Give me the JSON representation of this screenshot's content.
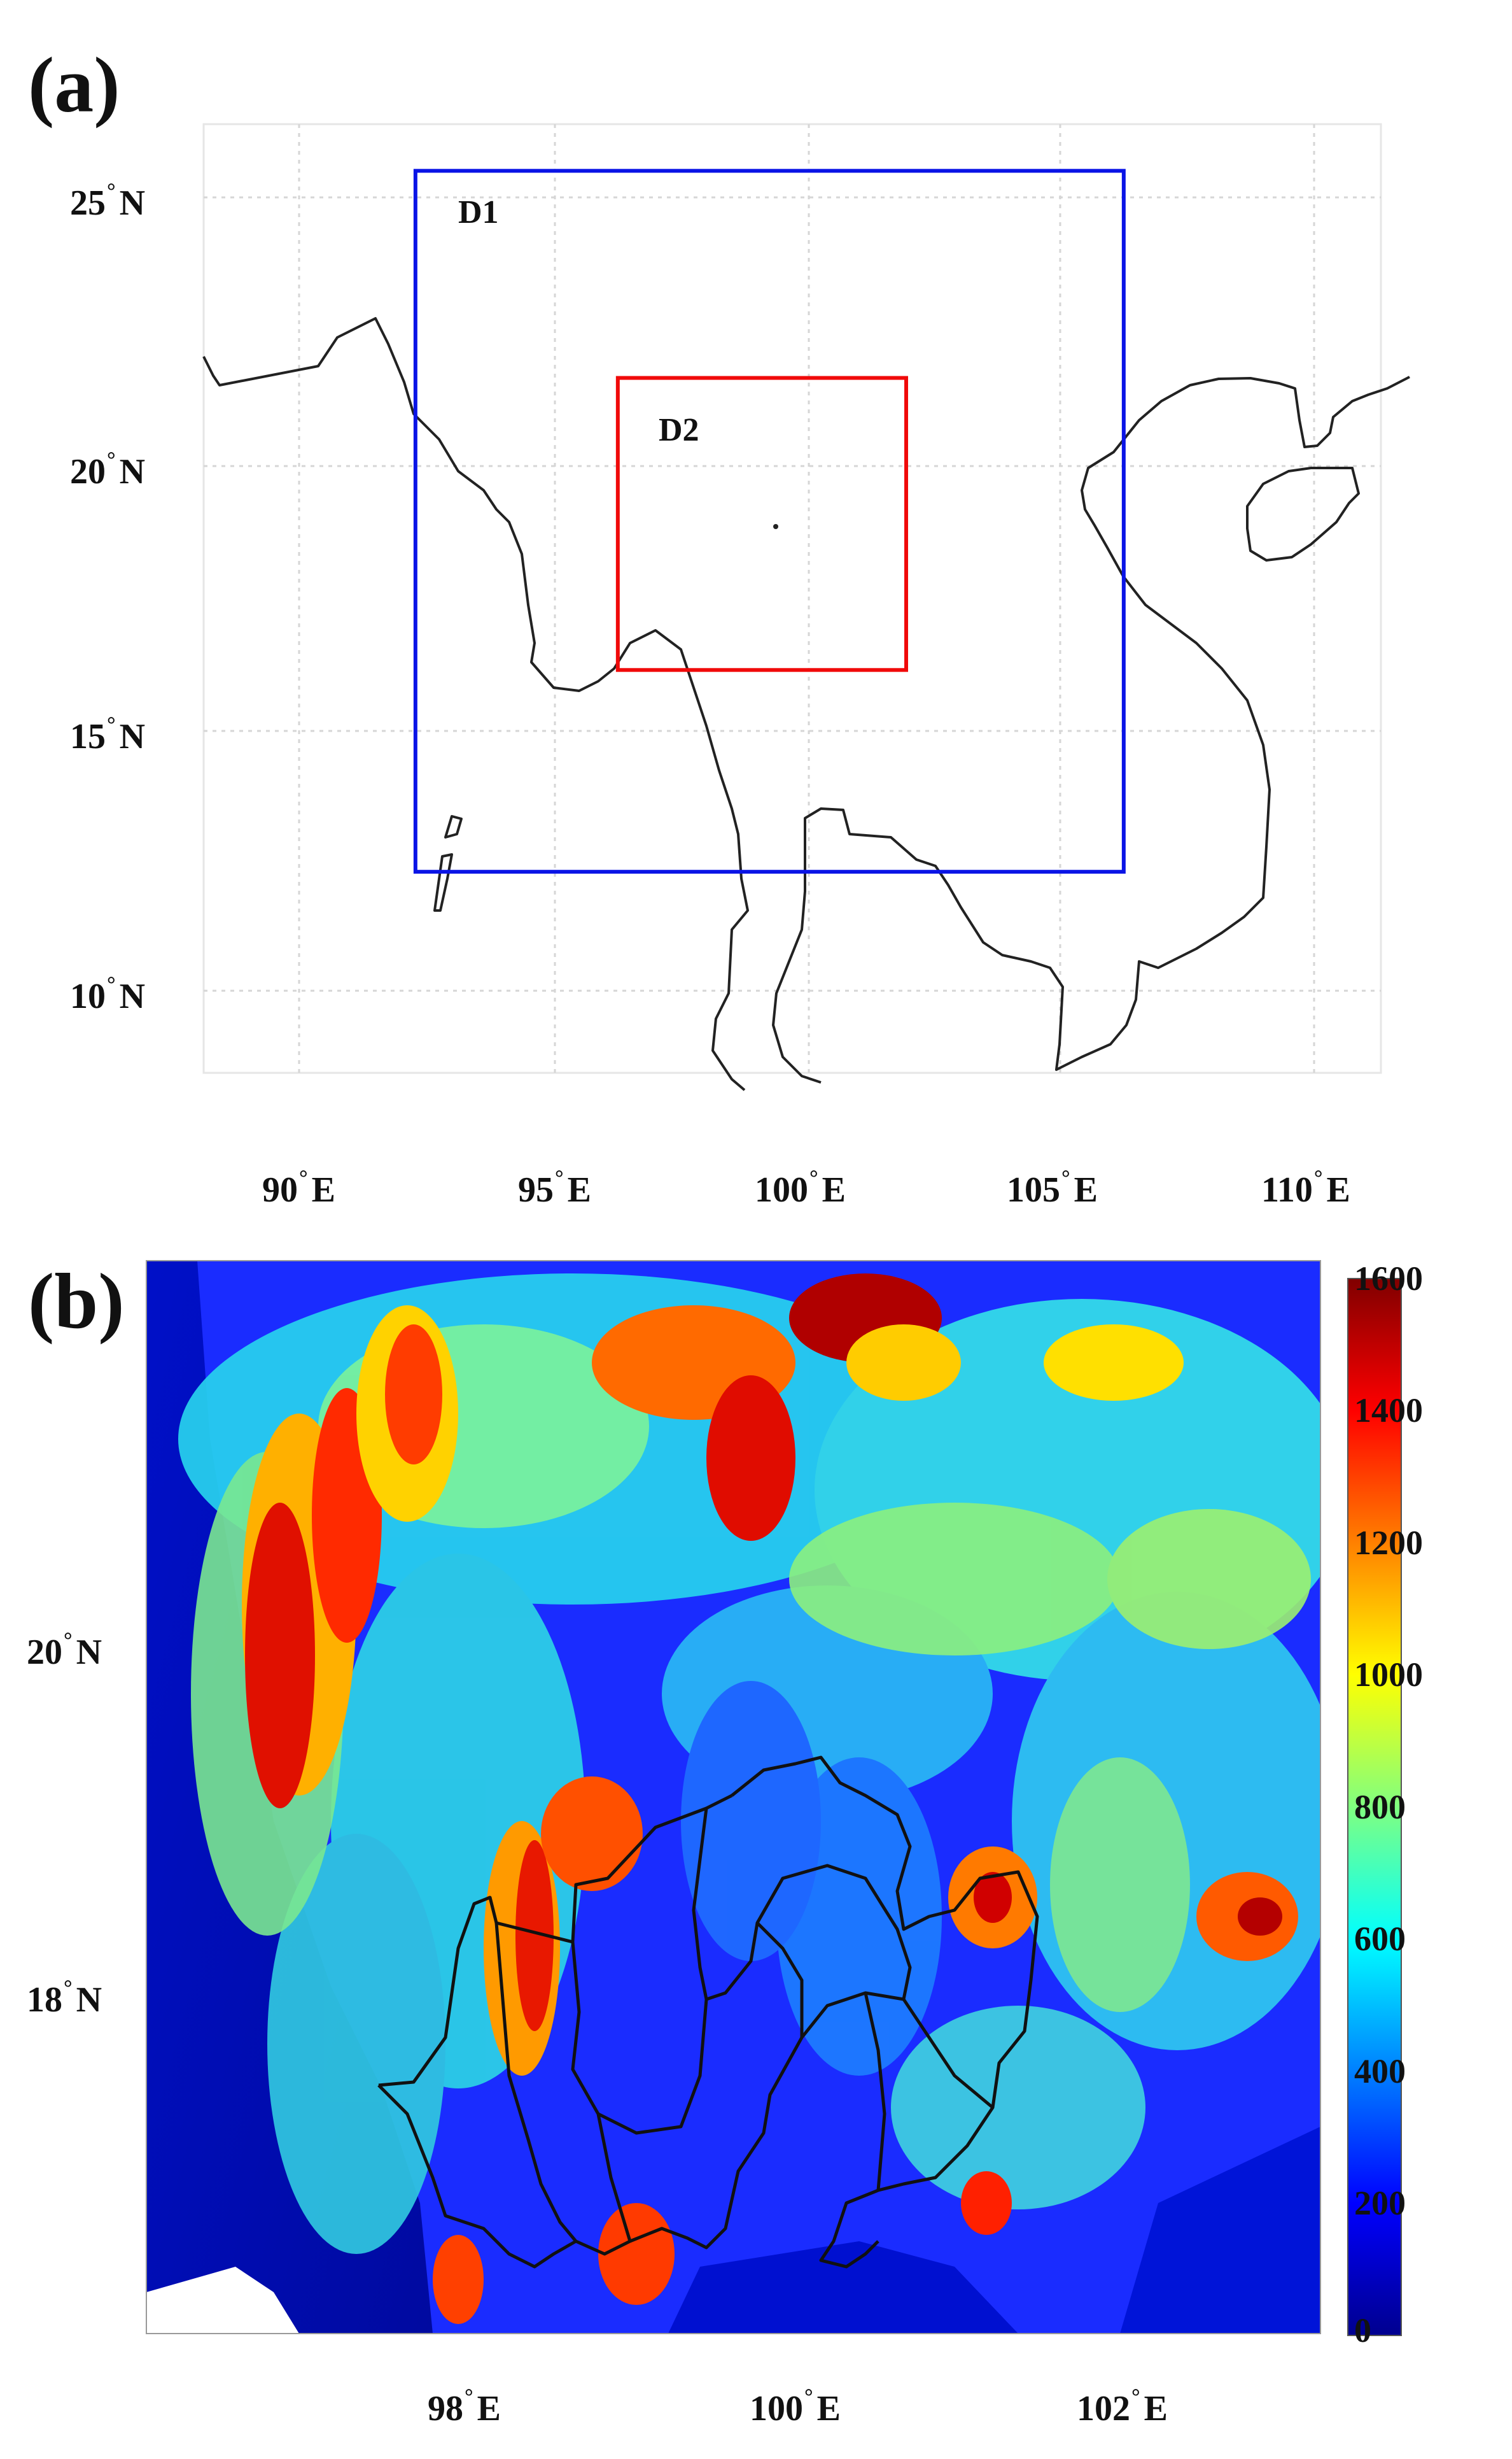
{
  "panel_a": {
    "letter": "(a)",
    "lat_ticks": [
      {
        "deg": "25",
        "hemi": "N"
      },
      {
        "deg": "20",
        "hemi": "N"
      },
      {
        "deg": "15",
        "hemi": "N"
      },
      {
        "deg": "10",
        "hemi": "N"
      }
    ],
    "lon_ticks": [
      {
        "deg": "90",
        "hemi": "E"
      },
      {
        "deg": "95",
        "hemi": "E"
      },
      {
        "deg": "100",
        "hemi": "E"
      },
      {
        "deg": "105",
        "hemi": "E"
      },
      {
        "deg": "110",
        "hemi": "E"
      }
    ],
    "domains": [
      {
        "label": "D1",
        "color": "#0a14e6",
        "lon_range": [
          92.3,
          106.3
        ],
        "lat_range": [
          12.3,
          25.5
        ]
      },
      {
        "label": "D2",
        "color": "#f00a0a",
        "lon_range": [
          96.3,
          102.0
        ],
        "lat_range": [
          16.1,
          21.6
        ]
      }
    ]
  },
  "panel_b": {
    "letter": "(b)",
    "lat_ticks": [
      {
        "deg": "20",
        "hemi": "N"
      },
      {
        "deg": "18",
        "hemi": "N"
      }
    ],
    "lon_ticks": [
      {
        "deg": "98",
        "hemi": "E"
      },
      {
        "deg": "100",
        "hemi": "E"
      },
      {
        "deg": "102",
        "hemi": "E"
      }
    ],
    "colorbar": {
      "ticks": [
        "1600",
        "1400",
        "1200",
        "1000",
        "800",
        "600",
        "400",
        "200",
        "0"
      ],
      "min": 0,
      "max": 1600,
      "colormap": [
        "#00008f",
        "#0000ff",
        "#0080ff",
        "#00ffff",
        "#80ff80",
        "#ffff00",
        "#ff8000",
        "#ff0000",
        "#800000"
      ]
    }
  }
}
